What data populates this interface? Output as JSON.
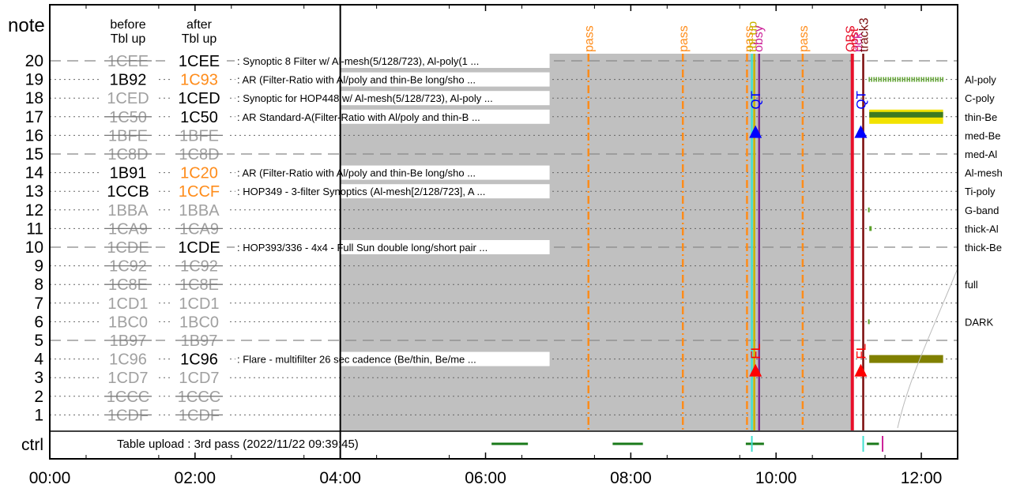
{
  "chart_data": {
    "type": "timeline",
    "x_axis": {
      "range": [
        "00:00",
        "12:30"
      ],
      "ticks": [
        "00:00",
        "02:00",
        "04:00",
        "06:00",
        "08:00",
        "10:00",
        "12:00"
      ]
    },
    "y_axis": {
      "label": "note",
      "ticks": [
        "20",
        "19",
        "18",
        "17",
        "16",
        "15",
        "14",
        "13",
        "12",
        "11",
        "10",
        "9",
        "8",
        "7",
        "6",
        "5",
        "4",
        "3",
        "2",
        "1"
      ],
      "bottom_label": "ctrl"
    },
    "headers": {
      "before": "before\nTbl up",
      "after": "after\nTbl up"
    },
    "table_rows": [
      {
        "row": 20,
        "before": "1CEE",
        "before_state": "struck",
        "after": "1CEE",
        "after_state": "active",
        "desc": ": Synoptic 8 Filter w/ Al-mesh(5/128/723), Al-poly(1 ..."
      },
      {
        "row": 19,
        "before": "1B92",
        "before_state": "active",
        "after": "1C93",
        "after_state": "changed",
        "desc": ": AR (Filter-Ratio with Al/poly and thin-Be long/sho ..."
      },
      {
        "row": 18,
        "before": "1CED",
        "before_state": "inactive",
        "after": "1CED",
        "after_state": "active",
        "desc": ": Synoptic for HOP448 w/ Al-mesh(5/128/723), Al-poly ..."
      },
      {
        "row": 17,
        "before": "1C50",
        "before_state": "struck",
        "after": "1C50",
        "after_state": "active",
        "desc": ": AR Standard-A(Filter-Ratio with Al/poly and thin-B ..."
      },
      {
        "row": 16,
        "before": "1BFE",
        "before_state": "struck",
        "after": "1BFE",
        "after_state": "struck",
        "desc": ""
      },
      {
        "row": 15,
        "before": "1C8D",
        "before_state": "struck",
        "after": "1C8D",
        "after_state": "struck",
        "desc": ""
      },
      {
        "row": 14,
        "before": "1B91",
        "before_state": "active",
        "after": "1C20",
        "after_state": "changed",
        "desc": ": AR (Filter-Ratio with Al/poly and thin-Be long/sho ..."
      },
      {
        "row": 13,
        "before": "1CCB",
        "before_state": "active",
        "after": "1CCF",
        "after_state": "changed",
        "desc": ": HOP349 - 3-filter Synoptics (Al-mesh[2/128/723], A ..."
      },
      {
        "row": 12,
        "before": "1BBA",
        "before_state": "inactive",
        "after": "1BBA",
        "after_state": "inactive",
        "desc": ""
      },
      {
        "row": 11,
        "before": "1CA9",
        "before_state": "struck",
        "after": "1CA9",
        "after_state": "struck",
        "desc": ""
      },
      {
        "row": 10,
        "before": "1CDE",
        "before_state": "struck",
        "after": "1CDE",
        "after_state": "active",
        "desc": ": HOP393/336 - 4x4 - Full Sun double long/short pair ..."
      },
      {
        "row": 9,
        "before": "1C92",
        "before_state": "struck",
        "after": "1C92",
        "after_state": "struck",
        "desc": ""
      },
      {
        "row": 8,
        "before": "1C8E",
        "before_state": "struck",
        "after": "1C8E",
        "after_state": "struck",
        "desc": ""
      },
      {
        "row": 7,
        "before": "1CD1",
        "before_state": "inactive",
        "after": "1CD1",
        "after_state": "inactive",
        "desc": ""
      },
      {
        "row": 6,
        "before": "1BC0",
        "before_state": "inactive",
        "after": "1BC0",
        "after_state": "inactive",
        "desc": ""
      },
      {
        "row": 5,
        "before": "1B97",
        "before_state": "struck",
        "after": "1B97",
        "after_state": "struck",
        "desc": ""
      },
      {
        "row": 4,
        "before": "1C96",
        "before_state": "inactive",
        "after": "1C96",
        "after_state": "active",
        "desc": ": Flare - multifilter 26 sec cadence (Be/thin, Be/me ..."
      },
      {
        "row": 3,
        "before": "1CD7",
        "before_state": "inactive",
        "after": "1CD7",
        "after_state": "inactive",
        "desc": ""
      },
      {
        "row": 2,
        "before": "1CCC",
        "before_state": "struck",
        "after": "1CCC",
        "after_state": "struck",
        "desc": ""
      },
      {
        "row": 1,
        "before": "1CDF",
        "before_state": "struck",
        "after": "1CDF",
        "after_state": "struck",
        "desc": ""
      }
    ],
    "ctrl_text": "Table upload : 3rd pass (2022/11/22 09:39:45)",
    "shaded_region": {
      "from": "04:00",
      "to": "11:03"
    },
    "vertical_events": [
      {
        "time": "07:25",
        "label": "pass",
        "color": "#ff8c1a",
        "style": "dashdot"
      },
      {
        "time": "08:43",
        "label": "pass",
        "color": "#ff8c1a",
        "style": "dashdot"
      },
      {
        "time": "09:36",
        "label": "pass",
        "color": "#ff8c1a",
        "style": "dashdot"
      },
      {
        "time": "09:40",
        "label": "",
        "color": "#40e0d0",
        "style": "solid"
      },
      {
        "time": "09:42",
        "label": "tbl up",
        "color": "#c8b400",
        "style": "solid"
      },
      {
        "time": "09:46",
        "label": "obsy",
        "color": "#7b2d8e",
        "style": "solid"
      },
      {
        "time": "10:22",
        "label": "pass",
        "color": "#ff8c1a",
        "style": "dashdot"
      },
      {
        "time": "11:03",
        "label": "obst",
        "color": "#e8102a",
        "style": "solid"
      },
      {
        "time": "11:12",
        "label": "track3",
        "color": "#7a0a0a",
        "style": "solid"
      }
    ],
    "stacked_labels": [
      {
        "time": "09:37",
        "text": "pass",
        "color": "#ff8c1a",
        "level": 1
      },
      {
        "time": "09:40",
        "text": "tbl up",
        "color": "#c8b400",
        "level": 0
      },
      {
        "time": "09:45",
        "text": "obsy",
        "color": "#cc2299",
        "level": 0
      },
      {
        "time": "11:01",
        "text": "OBS",
        "color": "#e8102a",
        "level": 1
      },
      {
        "time": "11:04",
        "text": "obst",
        "color": "#e8102a",
        "level": 0
      },
      {
        "time": "11:07",
        "text": "pck",
        "color": "#cc2299",
        "level": 1
      },
      {
        "time": "11:12",
        "text": "track3",
        "color": "#7a0a0a",
        "level": 0
      }
    ],
    "markers": [
      {
        "time": "09:43",
        "row": 16.2,
        "shape": "triangle-up",
        "color": "#0000ff"
      },
      {
        "time": "09:43",
        "row": 17.9,
        "shape": "text",
        "text": "QT",
        "color": "#0000ff"
      },
      {
        "time": "11:10",
        "row": 16.2,
        "shape": "triangle-up",
        "color": "#0000ff"
      },
      {
        "time": "11:10",
        "row": 17.9,
        "shape": "text",
        "text": "QT",
        "color": "#0000ff"
      },
      {
        "time": "09:43",
        "row": 3.4,
        "shape": "triangle-up",
        "color": "#ff0000"
      },
      {
        "time": "09:43",
        "row": 4.5,
        "shape": "text",
        "text": "FL",
        "color": "#ff0000"
      },
      {
        "time": "11:10",
        "row": 3.4,
        "shape": "triangle-up",
        "color": "#ff0000"
      },
      {
        "time": "11:10",
        "row": 4.5,
        "shape": "text",
        "text": "FL",
        "color": "#ff0000"
      }
    ],
    "ctrl_segments": [
      {
        "from": "06:05",
        "to": "06:35",
        "color": "#1a7a1a"
      },
      {
        "from": "07:45",
        "to": "08:10",
        "color": "#1a7a1a"
      },
      {
        "from": "09:35",
        "to": "09:50",
        "color": "#1a7a1a"
      },
      {
        "from": "11:15",
        "to": "11:25",
        "color": "#1a7a1a"
      }
    ],
    "ctrl_ticks": [
      {
        "time": "09:40",
        "color": "#40e0d0"
      },
      {
        "time": "11:12",
        "color": "#40e0d0"
      },
      {
        "time": "11:28",
        "color": "#cc2299"
      }
    ],
    "filters": [
      {
        "name": "Al-poly",
        "y_row": 19,
        "bar": {
          "from": "11:17",
          "to": "12:18",
          "color": "#5aa028",
          "style": "hatched"
        }
      },
      {
        "name": "C-poly",
        "y_row": 18
      },
      {
        "name": "thin-Be",
        "y_row": 17,
        "bar": {
          "from": "11:17",
          "to": "12:18",
          "color": "#f2e200",
          "style": "solid-mixed"
        }
      },
      {
        "name": "med-Be",
        "y_row": 16
      },
      {
        "name": "med-Al",
        "y_row": 15
      },
      {
        "name": "Al-mesh",
        "y_row": 14
      },
      {
        "name": "Ti-poly",
        "y_row": 13
      },
      {
        "name": "G-band",
        "y_row": 12,
        "bar": {
          "from": "11:16",
          "to": "11:17",
          "color": "#5aa028",
          "style": "tick"
        }
      },
      {
        "name": "thick-Al",
        "y_row": 11,
        "bar": {
          "from": "11:17",
          "to": "11:19",
          "color": "#5aa028",
          "style": "tick"
        }
      },
      {
        "name": "thick-Be",
        "y_row": 10
      },
      {
        "name": "full",
        "y_row": 8
      },
      {
        "name": "DARK",
        "y_row": 6,
        "bar": {
          "from": "11:16",
          "to": "11:17",
          "color": "#5aa028",
          "style": "tick"
        }
      },
      {
        "name": "",
        "y_row": 4,
        "bar": {
          "from": "11:17",
          "to": "12:18",
          "color": "#808000",
          "style": "solid"
        }
      }
    ],
    "colors": {
      "struck": "#a0a0a0",
      "changed": "#ff8c1a",
      "active": "#000000",
      "shade": "#c0c0c0"
    }
  }
}
